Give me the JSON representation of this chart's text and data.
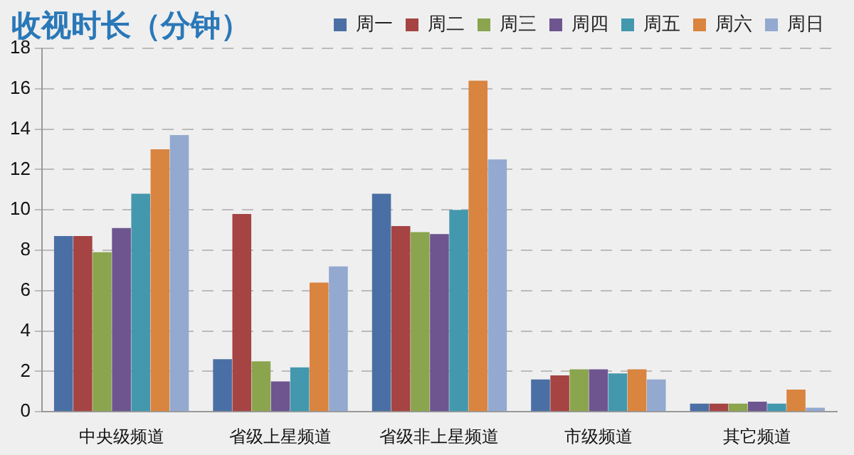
{
  "chart_data": {
    "type": "bar",
    "title": "收视时长（分钟）",
    "categories": [
      "中央级频道",
      "省级上星频道",
      "省级非上星频道",
      "市级频道",
      "其它频道"
    ],
    "series": [
      {
        "name": "周一",
        "color": "#4a6fa5",
        "values": [
          8.7,
          2.6,
          10.8,
          1.6,
          0.4
        ]
      },
      {
        "name": "周二",
        "color": "#a54443",
        "values": [
          8.7,
          9.8,
          9.2,
          1.8,
          0.4
        ]
      },
      {
        "name": "周三",
        "color": "#8aa54d",
        "values": [
          7.9,
          2.5,
          8.9,
          2.1,
          0.4
        ]
      },
      {
        "name": "周四",
        "color": "#6e558f",
        "values": [
          9.1,
          1.5,
          8.8,
          2.1,
          0.5
        ]
      },
      {
        "name": "周五",
        "color": "#4398ae",
        "values": [
          10.8,
          2.2,
          10.0,
          1.9,
          0.4
        ]
      },
      {
        "name": "周六",
        "color": "#d9843f",
        "values": [
          13.0,
          6.4,
          16.4,
          2.1,
          1.1
        ]
      },
      {
        "name": "周日",
        "color": "#93a9cf",
        "values": [
          13.7,
          7.2,
          12.5,
          1.6,
          0.2
        ]
      }
    ],
    "ylim": [
      0,
      18
    ],
    "yticks": [
      0,
      2,
      4,
      6,
      8,
      10,
      12,
      14,
      16,
      18
    ],
    "grid": "y",
    "legend": "top right"
  }
}
